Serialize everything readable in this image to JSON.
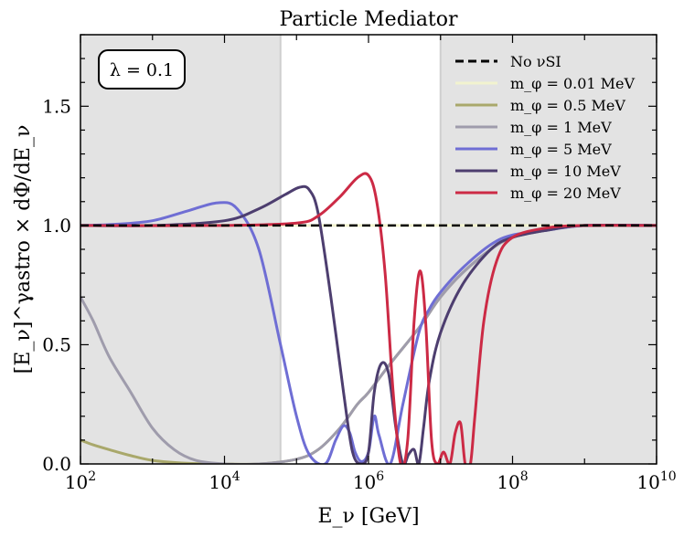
{
  "chart_data": {
    "type": "line",
    "title": "Particle Mediator",
    "xlabel": "E_ν [GeV]",
    "ylabel": "[E_ν]^γastro × dΦ/dE_ν",
    "xscale": "log",
    "xlim": [
      100,
      10000000000
    ],
    "ylim": [
      0,
      1.8
    ],
    "x_ticks": [
      "10^2",
      "10^4",
      "10^6",
      "10^8",
      "10^10"
    ],
    "y_ticks": [
      "0.0",
      "0.5",
      "1.0",
      "1.5"
    ],
    "annotation": "λ = 0.1",
    "shaded_regions": [
      {
        "from": 100,
        "to": 60000
      },
      {
        "from": 10000000,
        "to": 10000000000
      }
    ],
    "legend_position": "top-right",
    "series": [
      {
        "name": "No νSI",
        "color": "#000000",
        "dash": true,
        "x": [
          100,
          10000000000
        ],
        "y": [
          1.0,
          1.0
        ]
      },
      {
        "name": "m_φ = 0.01 MeV",
        "color": "#f2f3cf",
        "x": [
          100,
          10000000000
        ],
        "y": [
          1.0,
          1.0
        ]
      },
      {
        "name": "m_φ = 0.5 MeV",
        "color": "#a9a86b",
        "x": [
          100,
          150,
          250,
          500,
          1000,
          3000,
          10000,
          30000,
          100000,
          200000,
          400000,
          700000,
          1000000,
          2000000,
          5000000,
          10000000,
          20000000,
          50000000,
          100000000,
          300000000,
          1000000000,
          10000000000
        ],
        "y": [
          0.1,
          0.08,
          0.06,
          0.035,
          0.015,
          0.003,
          0.0,
          0.0,
          0.02,
          0.06,
          0.15,
          0.25,
          0.3,
          0.42,
          0.57,
          0.7,
          0.8,
          0.9,
          0.95,
          0.98,
          1.0,
          1.0
        ]
      },
      {
        "name": "m_φ = 1 MeV",
        "color": "#9f9cac",
        "x": [
          100,
          150,
          250,
          500,
          1000,
          2000,
          4000,
          10000,
          30000,
          100000,
          200000,
          400000,
          700000,
          1000000,
          2000000,
          5000000,
          10000000,
          20000000,
          50000000,
          100000000,
          300000000,
          1000000000,
          10000000000
        ],
        "y": [
          0.7,
          0.6,
          0.45,
          0.3,
          0.15,
          0.06,
          0.015,
          0.0,
          0.0,
          0.02,
          0.06,
          0.15,
          0.25,
          0.3,
          0.42,
          0.57,
          0.7,
          0.8,
          0.9,
          0.95,
          0.98,
          1.0,
          1.0
        ]
      },
      {
        "name": "m_φ = 5 MeV",
        "color": "#6f6ed4",
        "x": [
          100,
          300,
          1000,
          3000,
          8000,
          15000,
          30000,
          60000,
          100000,
          150000,
          250000,
          350000,
          450000,
          550000,
          650000,
          800000,
          1000000,
          1200000,
          1400000,
          2000000,
          3000000,
          5000000,
          7000000,
          10000000,
          20000000,
          50000000,
          100000000,
          300000000,
          1000000000,
          10000000000
        ],
        "y": [
          1.0,
          1.005,
          1.02,
          1.06,
          1.095,
          1.07,
          0.9,
          0.5,
          0.2,
          0.04,
          0.0,
          0.1,
          0.16,
          0.13,
          0.05,
          0.01,
          0.05,
          0.2,
          0.12,
          0.0,
          0.25,
          0.55,
          0.65,
          0.72,
          0.82,
          0.92,
          0.96,
          0.98,
          1.0,
          1.0
        ]
      },
      {
        "name": "m_φ = 10 MeV",
        "color": "#4d3e6f",
        "x": [
          100,
          1000,
          10000,
          30000,
          70000,
          110000,
          150000,
          200000,
          300000,
          450000,
          600000,
          800000,
          1000000,
          1200000,
          1500000,
          1900000,
          2400000,
          3000000,
          3600000,
          4300000,
          5000000,
          5800000,
          7000000,
          10000000,
          20000000,
          50000000,
          100000000,
          300000000,
          1000000000,
          10000000000
        ],
        "y": [
          1.0,
          1.0,
          1.02,
          1.07,
          1.13,
          1.16,
          1.15,
          1.05,
          0.7,
          0.3,
          0.05,
          0.0,
          0.05,
          0.3,
          0.42,
          0.38,
          0.15,
          0.0,
          0.04,
          0.06,
          0.0,
          0.15,
          0.35,
          0.55,
          0.75,
          0.9,
          0.95,
          0.98,
          1.0,
          1.0
        ]
      },
      {
        "name": "m_φ = 20 MeV",
        "color": "#cc2a45",
        "x": [
          100,
          10000,
          100000,
          200000,
          400000,
          700000,
          1000000,
          1300000,
          1700000,
          2200000,
          2800000,
          3500000,
          4300000,
          5200000,
          6200000,
          7500000,
          9000000,
          11000000,
          13500000,
          16000000,
          19000000,
          22000000,
          26000000,
          30000000,
          40000000,
          60000000,
          100000000,
          300000000,
          1000000000,
          10000000000
        ],
        "y": [
          1.0,
          1.0,
          1.01,
          1.04,
          1.12,
          1.2,
          1.21,
          1.1,
          0.8,
          0.3,
          0.0,
          0.1,
          0.6,
          0.81,
          0.6,
          0.1,
          0.0,
          0.05,
          0.0,
          0.13,
          0.17,
          0.0,
          0.0,
          0.2,
          0.6,
          0.85,
          0.95,
          0.99,
          1.0,
          1.0
        ]
      }
    ]
  }
}
